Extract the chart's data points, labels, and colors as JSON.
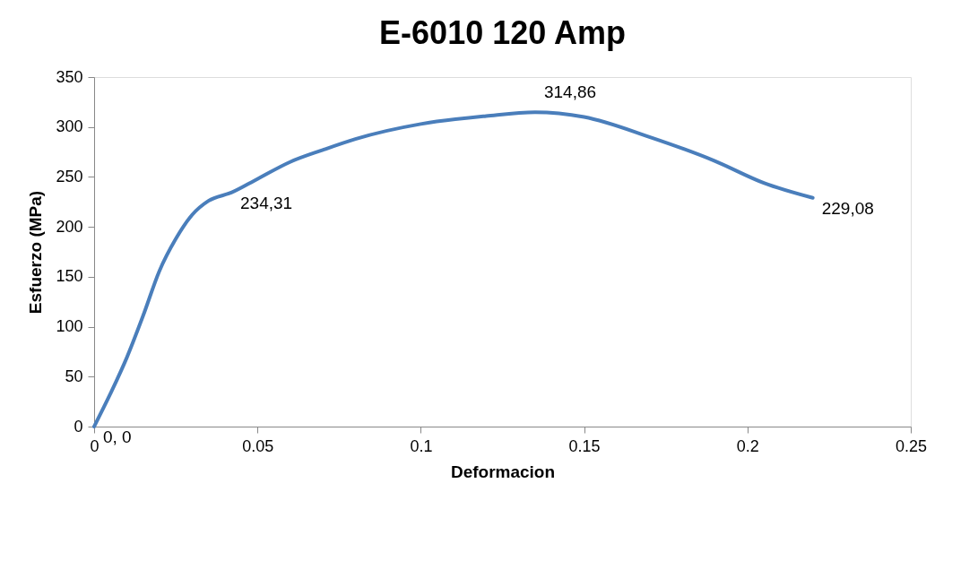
{
  "chart_data": {
    "type": "line",
    "title": "E-6010 120 Amp",
    "xlabel": "Deformacion",
    "ylabel": "Esfuerzo (MPa)",
    "x": [
      0,
      0.005,
      0.01,
      0.015,
      0.02,
      0.025,
      0.03,
      0.035,
      0.042,
      0.05,
      0.06,
      0.07,
      0.08,
      0.1,
      0.12,
      0.135,
      0.15,
      0.17,
      0.19,
      0.205,
      0.22
    ],
    "series": [
      {
        "color": "#4a7ebb",
        "values": [
          0,
          33,
          69,
          111,
          156,
          188,
          212,
          226,
          234.31,
          248,
          265,
          277,
          288,
          303,
          311,
          314.86,
          310,
          290,
          266,
          244,
          229.08
        ],
        "value_labels": [
          "0, 0",
          null,
          null,
          null,
          null,
          null,
          null,
          null,
          "234,31",
          null,
          null,
          null,
          null,
          null,
          null,
          "314,86",
          null,
          null,
          null,
          null,
          "229,08"
        ]
      }
    ],
    "xlim": [
      0,
      0.25
    ],
    "xticks": [
      0,
      0.05,
      0.1,
      0.15,
      0.2,
      0.25
    ],
    "ylim": [
      0,
      350
    ],
    "yticks": [
      0,
      50,
      100,
      150,
      200,
      250,
      300,
      350
    ],
    "grid": false,
    "legend": false,
    "marker": "none",
    "line_style": "solid"
  }
}
